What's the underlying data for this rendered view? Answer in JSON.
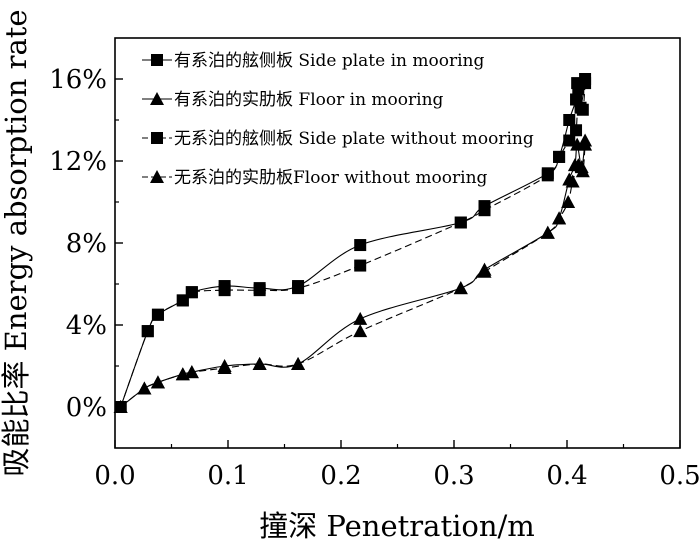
{
  "chart_data": {
    "type": "line",
    "xlabel": "撞深 Penetration/m",
    "ylabel": "吸能比率 Energy absorption rate",
    "xlim": [
      0,
      0.5
    ],
    "ylim": [
      -0.02,
      0.18
    ],
    "x_ticks": [
      {
        "value": 0.0,
        "label": "0.0"
      },
      {
        "value": 0.1,
        "label": "0.1"
      },
      {
        "value": 0.2,
        "label": "0.2"
      },
      {
        "value": 0.3,
        "label": "0.3"
      },
      {
        "value": 0.4,
        "label": "0.4"
      },
      {
        "value": 0.5,
        "label": "0.5"
      }
    ],
    "y_ticks": [
      {
        "value": 0.0,
        "label": "0%"
      },
      {
        "value": 0.04,
        "label": "4%"
      },
      {
        "value": 0.08,
        "label": "8%"
      },
      {
        "value": 0.12,
        "label": "12%"
      },
      {
        "value": 0.16,
        "label": "16%"
      }
    ],
    "grid": false,
    "legend_position": "top-left",
    "series": [
      {
        "name": "有系泊的舷侧板 Side plate in mooring",
        "marker": "square",
        "line_style": "solid",
        "points": [
          [
            0.005,
            0.0
          ],
          [
            0.029,
            0.037
          ],
          [
            0.038,
            0.045
          ],
          [
            0.06,
            0.052
          ],
          [
            0.068,
            0.056
          ],
          [
            0.097,
            0.059
          ],
          [
            0.128,
            0.058
          ],
          [
            0.162,
            0.059
          ],
          [
            0.217,
            0.079
          ],
          [
            0.306,
            0.09
          ],
          [
            0.327,
            0.098
          ],
          [
            0.383,
            0.114
          ],
          [
            0.393,
            0.122
          ],
          [
            0.402,
            0.14
          ],
          [
            0.408,
            0.15
          ],
          [
            0.409,
            0.158
          ],
          [
            0.412,
            0.146
          ],
          [
            0.416,
            0.16
          ]
        ]
      },
      {
        "name": "有系泊的实肋板 Floor in mooring",
        "marker": "triangle",
        "line_style": "solid",
        "points": [
          [
            0.005,
            0.0
          ],
          [
            0.026,
            0.009
          ],
          [
            0.038,
            0.012
          ],
          [
            0.06,
            0.016
          ],
          [
            0.068,
            0.017
          ],
          [
            0.097,
            0.02
          ],
          [
            0.128,
            0.021
          ],
          [
            0.162,
            0.021
          ],
          [
            0.217,
            0.043
          ],
          [
            0.306,
            0.058
          ],
          [
            0.327,
            0.067
          ],
          [
            0.383,
            0.085
          ],
          [
            0.393,
            0.092
          ],
          [
            0.402,
            0.111
          ],
          [
            0.407,
            0.118
          ],
          [
            0.409,
            0.128
          ],
          [
            0.413,
            0.117
          ],
          [
            0.416,
            0.13
          ]
        ]
      },
      {
        "name": "无系泊的舷侧板 Side plate without mooring",
        "marker": "square",
        "line_style": "dashed",
        "points": [
          [
            0.005,
            0.0
          ],
          [
            0.029,
            0.037
          ],
          [
            0.038,
            0.045
          ],
          [
            0.06,
            0.052
          ],
          [
            0.068,
            0.056
          ],
          [
            0.097,
            0.057
          ],
          [
            0.128,
            0.057
          ],
          [
            0.162,
            0.058
          ],
          [
            0.217,
            0.069
          ],
          [
            0.306,
            0.09
          ],
          [
            0.327,
            0.096
          ],
          [
            0.383,
            0.113
          ],
          [
            0.393,
            0.122
          ],
          [
            0.402,
            0.13
          ],
          [
            0.408,
            0.135
          ],
          [
            0.41,
            0.155
          ],
          [
            0.414,
            0.145
          ],
          [
            0.416,
            0.158
          ]
        ]
      },
      {
        "name": "无系泊的实肋板Floor without mooring",
        "marker": "triangle",
        "line_style": "dashed",
        "points": [
          [
            0.005,
            0.0
          ],
          [
            0.026,
            0.009
          ],
          [
            0.038,
            0.012
          ],
          [
            0.06,
            0.016
          ],
          [
            0.068,
            0.017
          ],
          [
            0.097,
            0.019
          ],
          [
            0.128,
            0.021
          ],
          [
            0.162,
            0.021
          ],
          [
            0.217,
            0.037
          ],
          [
            0.306,
            0.058
          ],
          [
            0.327,
            0.066
          ],
          [
            0.383,
            0.085
          ],
          [
            0.393,
            0.092
          ],
          [
            0.401,
            0.1
          ],
          [
            0.405,
            0.11
          ],
          [
            0.41,
            0.118
          ],
          [
            0.414,
            0.115
          ],
          [
            0.416,
            0.128
          ]
        ]
      }
    ]
  }
}
